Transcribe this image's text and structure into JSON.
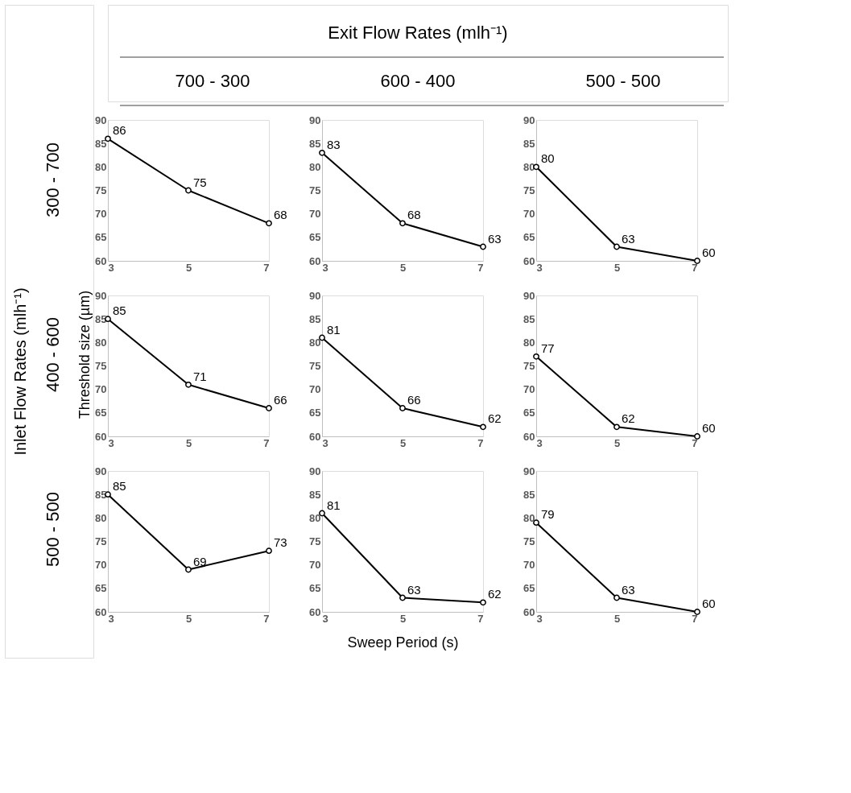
{
  "chart_data": [
    {
      "type": "line",
      "title": "700 - 300",
      "annotations": [
        "Exit Flow Rates (mlh⁻¹)",
        "300 - 700"
      ],
      "x": [
        3,
        5,
        7
      ],
      "values": [
        86,
        75,
        68
      ],
      "color": "#000000",
      "xlim": [
        3,
        7
      ],
      "xticks": [
        3,
        5,
        7
      ],
      "ylim": [
        60,
        90
      ],
      "yticks": [
        60,
        65,
        70,
        75,
        80,
        85,
        90
      ],
      "marker": "circle",
      "data_labels": true
    },
    {
      "type": "line",
      "title": "600 - 400",
      "x": [
        3,
        5,
        7
      ],
      "values": [
        83,
        68,
        63
      ],
      "color": "#000000",
      "xlim": [
        3,
        7
      ],
      "xticks": [
        3,
        5,
        7
      ],
      "ylim": [
        60,
        90
      ],
      "yticks": [
        60,
        65,
        70,
        75,
        80,
        85,
        90
      ],
      "marker": "circle",
      "data_labels": true
    },
    {
      "type": "line",
      "title": "500 - 500",
      "x": [
        3,
        5,
        7
      ],
      "values": [
        80,
        63,
        60
      ],
      "color": "#000000",
      "xlim": [
        3,
        7
      ],
      "xticks": [
        3,
        5,
        7
      ],
      "ylim": [
        60,
        90
      ],
      "yticks": [
        60,
        65,
        70,
        75,
        80,
        85,
        90
      ],
      "marker": "circle",
      "data_labels": true
    },
    {
      "type": "line",
      "ylabel": "Threshold size  (µm)",
      "annotations": [
        "Inlet Flow Rates (mlh⁻¹)",
        "400 - 600"
      ],
      "x": [
        3,
        5,
        7
      ],
      "values": [
        85,
        71,
        66
      ],
      "color": "#000000",
      "xlim": [
        3,
        7
      ],
      "xticks": [
        3,
        5,
        7
      ],
      "ylim": [
        60,
        90
      ],
      "yticks": [
        60,
        65,
        70,
        75,
        80,
        85,
        90
      ],
      "marker": "circle",
      "data_labels": true
    },
    {
      "type": "line",
      "x": [
        3,
        5,
        7
      ],
      "values": [
        81,
        66,
        62
      ],
      "color": "#000000",
      "xlim": [
        3,
        7
      ],
      "xticks": [
        3,
        5,
        7
      ],
      "ylim": [
        60,
        90
      ],
      "yticks": [
        60,
        65,
        70,
        75,
        80,
        85,
        90
      ],
      "marker": "circle",
      "data_labels": true
    },
    {
      "type": "line",
      "x": [
        3,
        5,
        7
      ],
      "values": [
        77,
        62,
        60
      ],
      "color": "#000000",
      "xlim": [
        3,
        7
      ],
      "xticks": [
        3,
        5,
        7
      ],
      "ylim": [
        60,
        90
      ],
      "yticks": [
        60,
        65,
        70,
        75,
        80,
        85,
        90
      ],
      "marker": "circle",
      "data_labels": true
    },
    {
      "type": "line",
      "annotations": [
        "500 - 500"
      ],
      "x": [
        3,
        5,
        7
      ],
      "values": [
        85,
        69,
        73
      ],
      "color": "#000000",
      "xlim": [
        3,
        7
      ],
      "xticks": [
        3,
        5,
        7
      ],
      "ylim": [
        60,
        90
      ],
      "yticks": [
        60,
        65,
        70,
        75,
        80,
        85,
        90
      ],
      "marker": "circle",
      "data_labels": true
    },
    {
      "type": "line",
      "xlabel": "Sweep Period (s)",
      "x": [
        3,
        5,
        7
      ],
      "values": [
        81,
        63,
        62
      ],
      "color": "#000000",
      "xlim": [
        3,
        7
      ],
      "xticks": [
        3,
        5,
        7
      ],
      "ylim": [
        60,
        90
      ],
      "yticks": [
        60,
        65,
        70,
        75,
        80,
        85,
        90
      ],
      "marker": "circle",
      "data_labels": true
    },
    {
      "type": "line",
      "x": [
        3,
        5,
        7
      ],
      "values": [
        79,
        63,
        60
      ],
      "color": "#000000",
      "xlim": [
        3,
        7
      ],
      "xticks": [
        3,
        5,
        7
      ],
      "ylim": [
        60,
        90
      ],
      "yticks": [
        60,
        65,
        70,
        75,
        80,
        85,
        90
      ],
      "marker": "circle",
      "data_labels": true
    }
  ]
}
